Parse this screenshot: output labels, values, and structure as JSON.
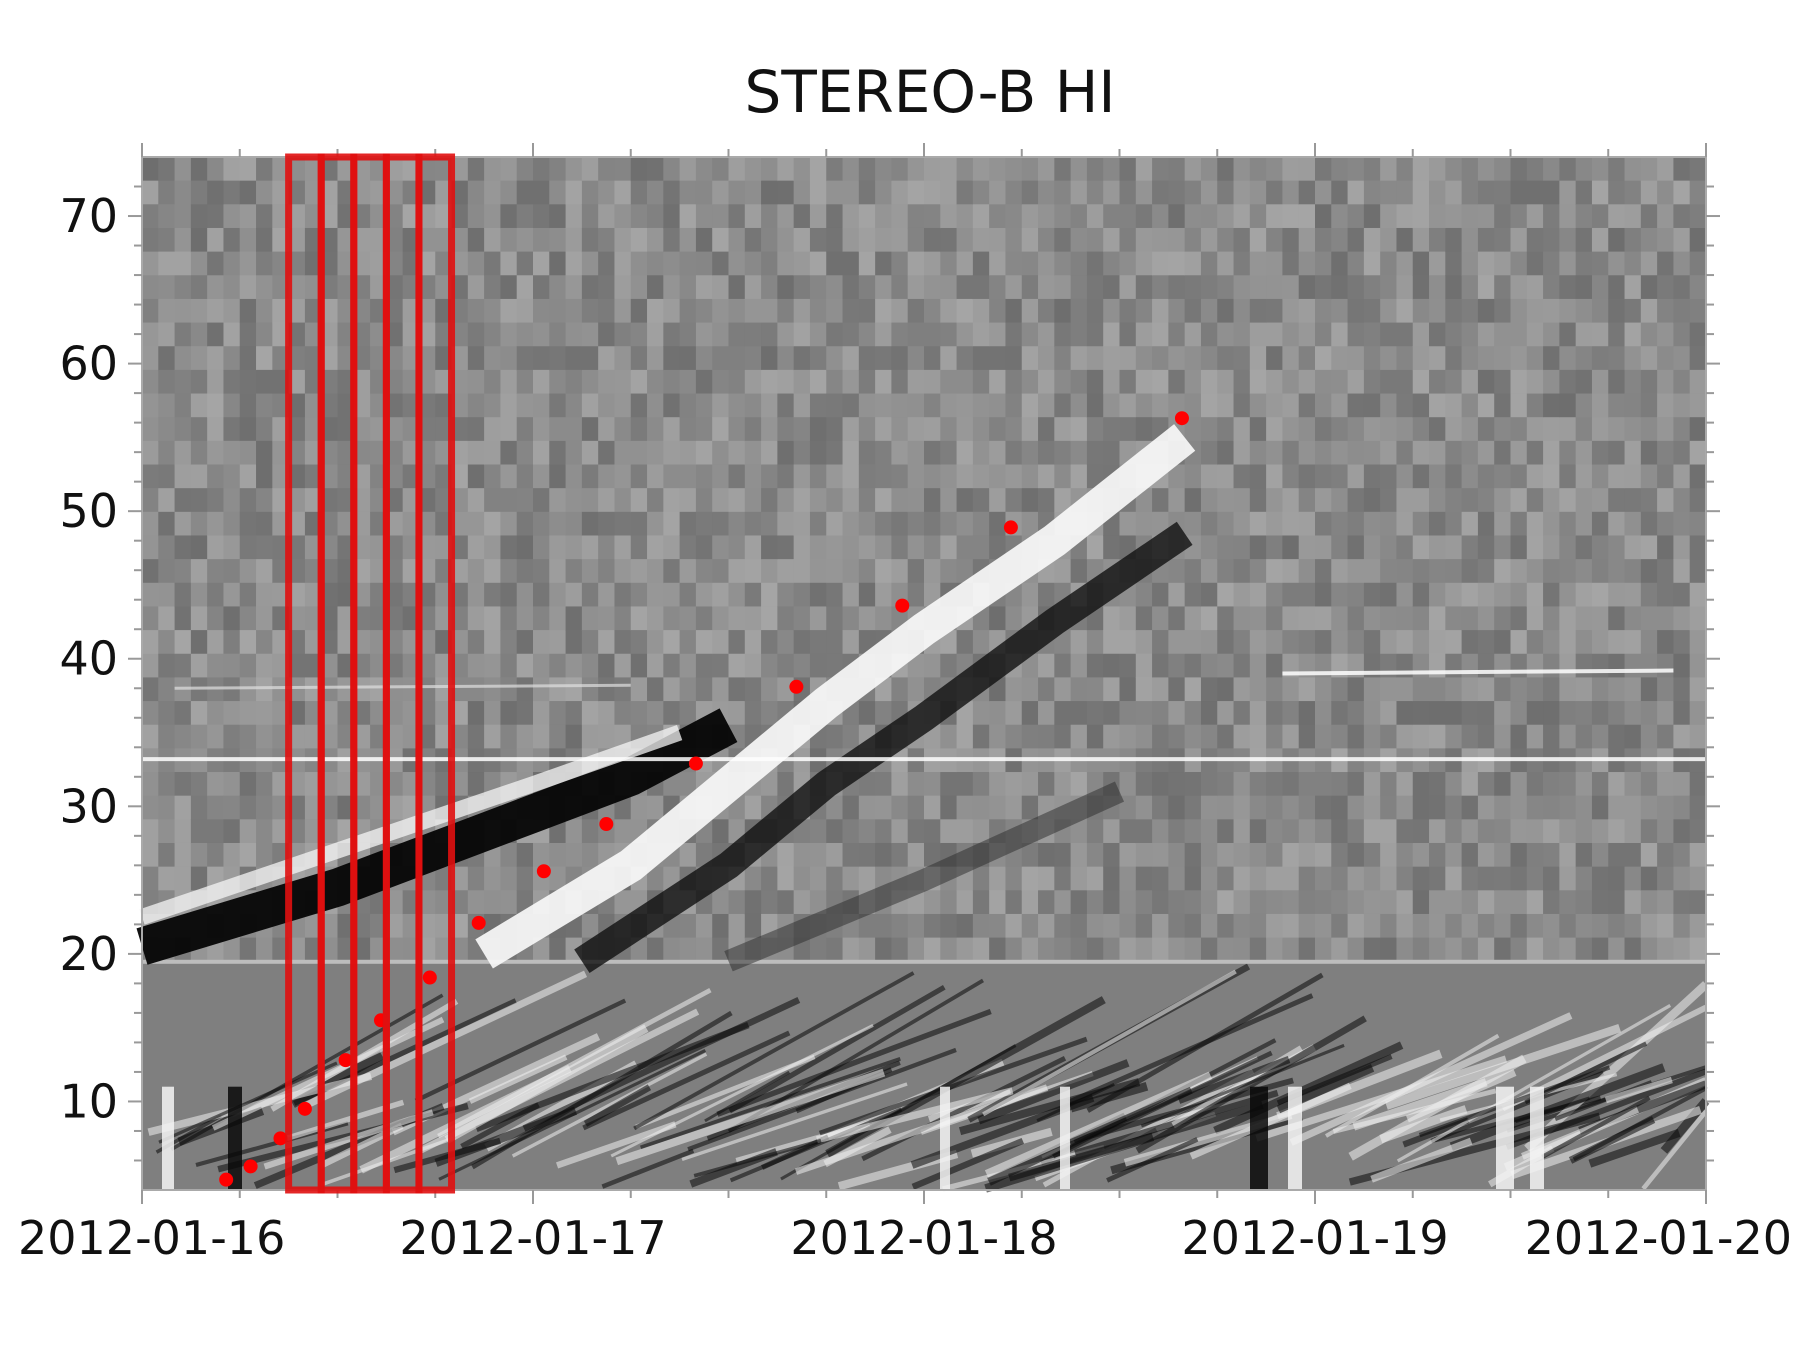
{
  "chart_data": {
    "type": "scatter",
    "title": "STEREO-B HI",
    "xlabel": "",
    "ylabel": "",
    "x_axis": {
      "type": "date",
      "range": [
        "2012-01-16",
        "2012-01-20"
      ],
      "tick_labels": [
        "2012-01-16",
        "2012-01-17",
        "2012-01-18",
        "2012-01-19",
        "2012-01-20"
      ]
    },
    "y_axis": {
      "range": [
        4,
        74
      ],
      "tick_labels": [
        "10",
        "20",
        "30",
        "40",
        "50",
        "60",
        "70"
      ]
    },
    "background": "grayscale time-elongation map (J-map); upper half above 19.5 and lower half below",
    "series": [
      {
        "marker_color": "#ff0000",
        "points": [
          {
            "x": "2012-01-16T05:10",
            "y": 4.7
          },
          {
            "x": "2012-01-16T06:40",
            "y": 5.6
          },
          {
            "x": "2012-01-16T08:30",
            "y": 7.5
          },
          {
            "x": "2012-01-16T10:00",
            "y": 9.5
          },
          {
            "x": "2012-01-16T12:30",
            "y": 12.8
          },
          {
            "x": "2012-01-16T14:40",
            "y": 15.5
          },
          {
            "x": "2012-01-16T17:40",
            "y": 18.4
          },
          {
            "x": "2012-01-16T20:40",
            "y": 22.1
          },
          {
            "x": "2012-01-17T00:40",
            "y": 25.6
          },
          {
            "x": "2012-01-17T04:30",
            "y": 28.8
          },
          {
            "x": "2012-01-17T10:00",
            "y": 32.9
          },
          {
            "x": "2012-01-17T16:10",
            "y": 38.1
          },
          {
            "x": "2012-01-17T22:40",
            "y": 43.6
          },
          {
            "x": "2012-01-18T05:20",
            "y": 48.9
          },
          {
            "x": "2012-01-18T15:50",
            "y": 56.3
          }
        ]
      }
    ],
    "highlight_boxes": {
      "color": "#e01010",
      "y_range": [
        4,
        74
      ],
      "x_ranges": [
        [
          "2012-01-16T09:00",
          "2012-01-16T11:00"
        ],
        [
          "2012-01-16T11:00",
          "2012-01-16T13:00"
        ],
        [
          "2012-01-16T13:00",
          "2012-01-16T15:00"
        ],
        [
          "2012-01-16T15:00",
          "2012-01-16T17:00"
        ],
        [
          "2012-01-16T17:00",
          "2012-01-16T19:00"
        ]
      ]
    }
  }
}
